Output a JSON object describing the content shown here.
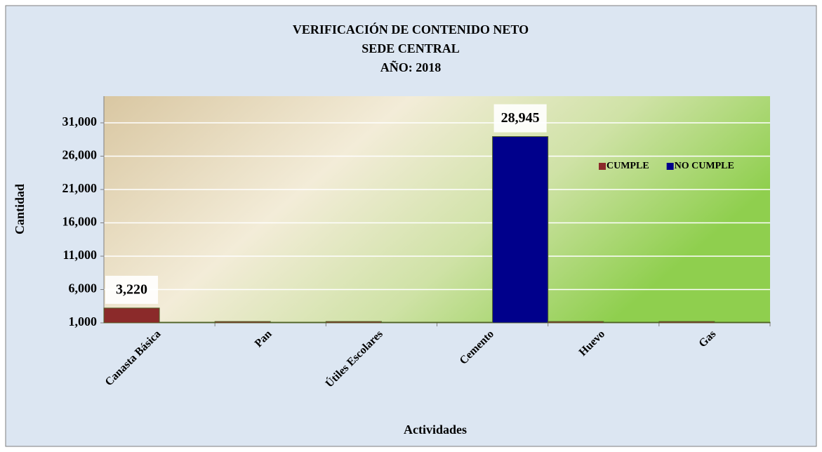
{
  "chart_data": {
    "type": "bar",
    "title": [
      "VERIFICACIÓN DE CONTENIDO NETO",
      "SEDE CENTRAL",
      "AÑO: 2018"
    ],
    "x_label": "Actividades",
    "y_label": "Cantidad",
    "categories": [
      "Canasta Básica",
      "Pan",
      "Útiles Escolares",
      "Cemento",
      "Huevo",
      "Gas"
    ],
    "series": [
      {
        "name": "CUMPLE",
        "color": "#8b2a2a",
        "values": [
          3220,
          1200,
          1200,
          1100,
          1200,
          1200
        ],
        "value_labels": [
          "3,220",
          null,
          null,
          null,
          null,
          null
        ]
      },
      {
        "name": "NO CUMPLE",
        "color": "#00008b",
        "values": [
          1100,
          1100,
          1100,
          28945,
          1100,
          1100
        ],
        "value_labels": [
          null,
          null,
          null,
          "28,945",
          null,
          null
        ]
      }
    ],
    "ylim": [
      1000,
      35000
    ],
    "yticks": [
      {
        "value": 1000,
        "label": "1,000"
      },
      {
        "value": 6000,
        "label": "6,000"
      },
      {
        "value": 11000,
        "label": "11,000"
      },
      {
        "value": 16000,
        "label": "16,000"
      },
      {
        "value": 21000,
        "label": "21,000"
      },
      {
        "value": 26000,
        "label": "26,000"
      },
      {
        "value": 31000,
        "label": "31,000"
      }
    ],
    "grid": true,
    "legend": "upper right"
  }
}
